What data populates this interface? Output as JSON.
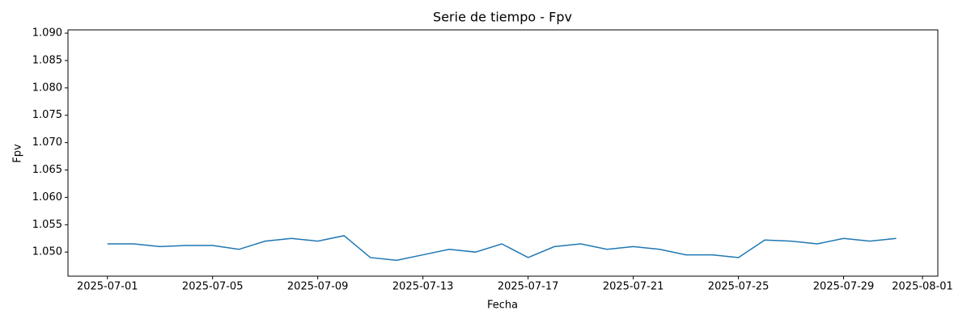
{
  "chart_data": {
    "type": "line",
    "title": "Serie de tiempo - Fpv",
    "xlabel": "Fecha",
    "ylabel": "Fpv",
    "x": [
      "2025-07-01",
      "2025-07-02",
      "2025-07-03",
      "2025-07-04",
      "2025-07-05",
      "2025-07-06",
      "2025-07-07",
      "2025-07-08",
      "2025-07-09",
      "2025-07-10",
      "2025-07-11",
      "2025-07-12",
      "2025-07-13",
      "2025-07-14",
      "2025-07-15",
      "2025-07-16",
      "2025-07-17",
      "2025-07-18",
      "2025-07-19",
      "2025-07-20",
      "2025-07-21",
      "2025-07-22",
      "2025-07-23",
      "2025-07-24",
      "2025-07-25",
      "2025-07-26",
      "2025-07-27",
      "2025-07-28",
      "2025-07-29",
      "2025-07-30",
      "2025-07-31"
    ],
    "series": [
      {
        "name": "Fpv",
        "color": "#1f77b4",
        "values": [
          1.0515,
          1.0515,
          1.051,
          1.0512,
          1.0512,
          1.0505,
          1.052,
          1.0525,
          1.052,
          1.053,
          1.049,
          1.0485,
          1.0495,
          1.0505,
          1.05,
          1.0515,
          1.049,
          1.051,
          1.0515,
          1.0505,
          1.051,
          1.0505,
          1.0495,
          1.0495,
          1.049,
          1.0522,
          1.052,
          1.0515,
          1.0525,
          1.052,
          1.0525
        ]
      }
    ],
    "xlim": [
      "2025-06-29T12:00",
      "2025-08-01T14:00"
    ],
    "xticks": [
      "2025-07-01",
      "2025-07-05",
      "2025-07-09",
      "2025-07-13",
      "2025-07-17",
      "2025-07-21",
      "2025-07-25",
      "2025-07-29",
      "2025-08-01"
    ],
    "ylim": [
      1.0456,
      1.0906
    ],
    "yticks": [
      {
        "value": 1.05,
        "label": "1.050"
      },
      {
        "value": 1.055,
        "label": "1.055"
      },
      {
        "value": 1.06,
        "label": "1.060"
      },
      {
        "value": 1.065,
        "label": "1.065"
      },
      {
        "value": 1.07,
        "label": "1.070"
      },
      {
        "value": 1.075,
        "label": "1.075"
      },
      {
        "value": 1.08,
        "label": "1.080"
      },
      {
        "value": 1.085,
        "label": "1.085"
      },
      {
        "value": 1.09,
        "label": "1.090"
      }
    ],
    "grid": false
  }
}
